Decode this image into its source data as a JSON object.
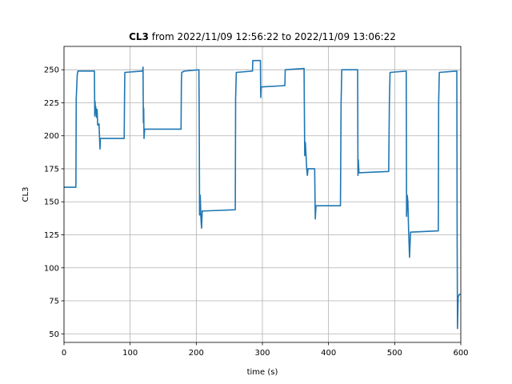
{
  "chart_data": {
    "type": "line",
    "title_bold": "CL3",
    "title": "from 2022/11/09 12:56:22 to 2022/11/09 13:06:22",
    "xlabel": "time (s)",
    "ylabel": "CL3",
    "color": "#1f77b4",
    "grid": true,
    "xlim": [
      0,
      600
    ],
    "ylim": [
      43.5,
      267.7
    ],
    "xticks": [
      0,
      100,
      200,
      300,
      400,
      500,
      600
    ],
    "yticks": [
      50,
      75,
      100,
      125,
      150,
      175,
      200,
      225,
      250
    ],
    "x": [
      0,
      18,
      18.5,
      20,
      21,
      46,
      46.5,
      47,
      47.5,
      48,
      49,
      50,
      51,
      53,
      54,
      54.5,
      55,
      91,
      91.5,
      92,
      119,
      119.5,
      120,
      120.5,
      121,
      122,
      177,
      177.5,
      178,
      182,
      204,
      204.5,
      205,
      206,
      207,
      208,
      209,
      259,
      259.5,
      260.5,
      285,
      285.5,
      297,
      297.5,
      298,
      334,
      334.5,
      363,
      364,
      365,
      367,
      368,
      369,
      379,
      380,
      381,
      418,
      419,
      420,
      444,
      444.5,
      445,
      446,
      491,
      492,
      493,
      517.5,
      518,
      519,
      520,
      521,
      522.5,
      524,
      566,
      566.5,
      567.5,
      594,
      594.5,
      595,
      596,
      598,
      600
    ],
    "values": [
      161,
      161,
      228,
      246,
      249,
      249,
      215,
      226,
      218,
      222,
      214,
      220,
      208,
      209,
      195,
      190,
      198,
      198,
      228,
      248,
      249,
      252,
      210,
      221,
      198,
      205,
      205,
      240,
      248,
      249,
      250,
      210,
      140,
      155,
      138,
      130,
      143,
      144,
      228,
      248,
      249,
      257,
      257,
      229,
      237,
      238,
      250,
      251,
      185,
      195,
      175,
      170,
      175,
      175,
      137,
      147,
      147,
      225,
      250,
      250,
      170,
      182,
      172,
      173,
      225,
      248,
      249,
      139,
      155,
      150,
      130,
      108,
      127,
      128,
      225,
      248,
      249,
      120,
      54,
      78,
      80,
      80
    ]
  }
}
